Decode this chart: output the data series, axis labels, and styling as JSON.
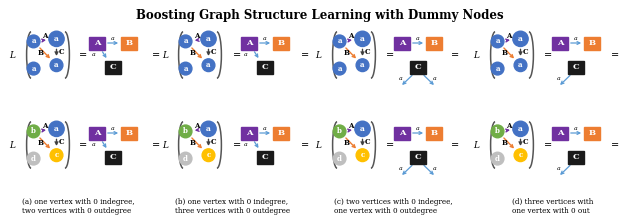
{
  "title": "Boosting Graph Structure Learning with Dummy Nodes",
  "title_fontsize": 8.5,
  "bg_color": "#ffffff",
  "captions": [
    "(a) one vertex with 0 indegree,\ntwo vertices with 0 outdegree",
    "(b) one vertex with 0 indegree,\nthree vertices with 0 outdegree",
    "(c) two vertices with 0 indegree,\none vertex with 0 outdegree",
    "(d) three vertices with\none vertex with 0 out"
  ],
  "node_blue": "#4472c4",
  "node_green": "#70ad47",
  "node_yellow": "#ffc000",
  "node_gray": "#bfbfbf",
  "node_purple": "#7030a0",
  "node_orange": "#ed7d31",
  "node_black": "#1a1a1a",
  "edge_purple": "#7030a0",
  "edge_orange": "#ed7d31",
  "edge_darkgray": "#404040",
  "edge_blue": "#5b9bd5"
}
